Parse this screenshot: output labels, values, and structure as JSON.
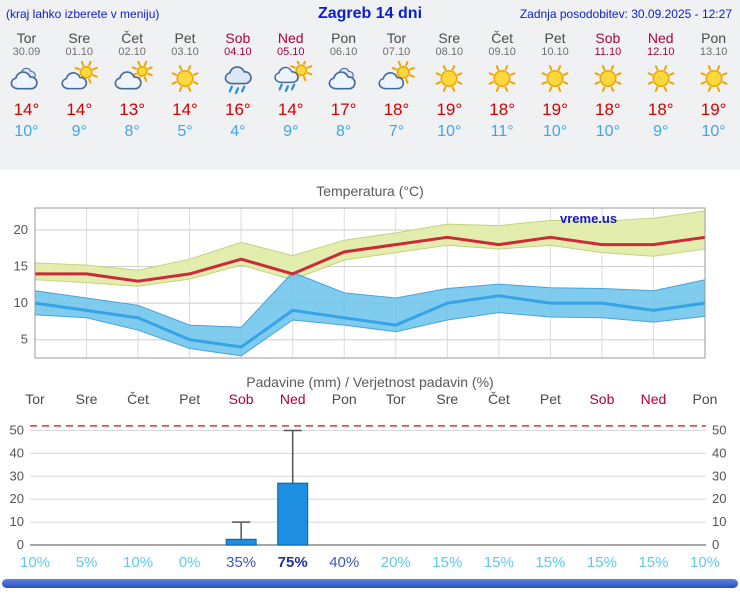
{
  "header": {
    "left_note": "(kraj lahko izberete v meniju)",
    "title": "Zagreb 14 dni",
    "updated": "Zadnja posodobitev: 30.09.2025 - 12:27"
  },
  "colors": {
    "header_blue": "#0a1ecc",
    "weekend_red": "#b00040",
    "day_gray": "#4a4a4a",
    "tmax_red": "#d40000",
    "tmin_blue": "#3fa5f0",
    "prob_low": "#5ecbe8",
    "prob_mid": "#3a57c0",
    "prob_high": "#202f9c",
    "footer_blue": "#2c4fb8",
    "footer_blue_light": "#5b82e8"
  },
  "days": [
    {
      "name": "Tor",
      "date": "30.09",
      "weekend": false,
      "icon": "cloudy",
      "tmax": "14°",
      "tmin": "10°"
    },
    {
      "name": "Sre",
      "date": "01.10",
      "weekend": false,
      "icon": "sun-cloud",
      "tmax": "14°",
      "tmin": "9°"
    },
    {
      "name": "Čet",
      "date": "02.10",
      "weekend": false,
      "icon": "cloud-sun",
      "tmax": "13°",
      "tmin": "8°"
    },
    {
      "name": "Pet",
      "date": "03.10",
      "weekend": false,
      "icon": "sunny",
      "tmax": "14°",
      "tmin": "5°"
    },
    {
      "name": "Sob",
      "date": "04.10",
      "weekend": true,
      "icon": "rain",
      "tmax": "16°",
      "tmin": "4°"
    },
    {
      "name": "Ned",
      "date": "05.10",
      "weekend": true,
      "icon": "sun-rain",
      "tmax": "14°",
      "tmin": "9°"
    },
    {
      "name": "Pon",
      "date": "06.10",
      "weekend": false,
      "icon": "cloudy",
      "tmax": "17°",
      "tmin": "8°"
    },
    {
      "name": "Tor",
      "date": "07.10",
      "weekend": false,
      "icon": "sun-cloud",
      "tmax": "18°",
      "tmin": "7°"
    },
    {
      "name": "Sre",
      "date": "08.10",
      "weekend": false,
      "icon": "sunny",
      "tmax": "19°",
      "tmin": "10°"
    },
    {
      "name": "Čet",
      "date": "09.10",
      "weekend": false,
      "icon": "sunny",
      "tmax": "18°",
      "tmin": "11°"
    },
    {
      "name": "Pet",
      "date": "10.10",
      "weekend": false,
      "icon": "sunny",
      "tmax": "19°",
      "tmin": "10°"
    },
    {
      "name": "Sob",
      "date": "11.10",
      "weekend": true,
      "icon": "sunny",
      "tmax": "18°",
      "tmin": "10°"
    },
    {
      "name": "Ned",
      "date": "12.10",
      "weekend": true,
      "icon": "sunny",
      "tmax": "18°",
      "tmin": "9°"
    },
    {
      "name": "Pon",
      "date": "13.10",
      "weekend": false,
      "icon": "sunny",
      "tmax": "19°",
      "tmin": "10°"
    }
  ],
  "chart_data": [
    {
      "type": "line",
      "title": "Temperatura (°C)",
      "x": [
        "Tor",
        "Sre",
        "Čet",
        "Pet",
        "Sob",
        "Ned",
        "Pon",
        "Tor",
        "Sre",
        "Čet",
        "Pet",
        "Sob",
        "Ned",
        "Pon"
      ],
      "series": [
        {
          "name": "max",
          "values": [
            14,
            14,
            13,
            14,
            16,
            14,
            17,
            18,
            19,
            18,
            19,
            18,
            18,
            19
          ],
          "color": "#cc2a38"
        },
        {
          "name": "min",
          "values": [
            10,
            9,
            8,
            5,
            4,
            9,
            8,
            7,
            10,
            11,
            10,
            10,
            9,
            10
          ],
          "color": "#36a3e8"
        }
      ],
      "bands": [
        {
          "name": "max-range",
          "upper": [
            15.5,
            15.2,
            14.5,
            16,
            18.3,
            16.5,
            18.6,
            19.6,
            20.8,
            20.6,
            21.3,
            21.2,
            21.6,
            22.6
          ],
          "lower": [
            13.2,
            12.8,
            12.3,
            13.3,
            15.2,
            13.2,
            15.9,
            16.9,
            17.9,
            17.4,
            17.9,
            16.9,
            16.4,
            17.4
          ],
          "fill": "#e3edad",
          "edge": "#c3d37e"
        },
        {
          "name": "min-range",
          "upper": [
            11.7,
            10.7,
            9.7,
            7,
            6.7,
            14.2,
            11.4,
            10.7,
            12,
            12.6,
            12.1,
            12,
            11.7,
            13.2
          ],
          "lower": [
            8.4,
            8,
            6.3,
            3.8,
            2.8,
            7.7,
            7,
            6.1,
            7.7,
            8.7,
            8.1,
            8,
            7.4,
            8.2
          ],
          "fill": "rgba(105,195,235,0.85)",
          "edge": "#49a3dc"
        }
      ],
      "ylim": [
        2.5,
        23
      ],
      "yticks": [
        5,
        10,
        15,
        20
      ],
      "grid": true,
      "watermark": "vreme.us"
    },
    {
      "type": "bar",
      "title": "Padavine (mm) / Verjetnost padavin (%)",
      "categories": [
        "Tor",
        "Sre",
        "Čet",
        "Pet",
        "Sob",
        "Ned",
        "Pon",
        "Tor",
        "Sre",
        "Čet",
        "Pet",
        "Sob",
        "Ned",
        "Pon"
      ],
      "weekend": [
        false,
        false,
        false,
        false,
        true,
        true,
        false,
        false,
        false,
        false,
        false,
        true,
        true,
        false
      ],
      "values": [
        0,
        0,
        0,
        0,
        2.5,
        27,
        0,
        0,
        0,
        0,
        0,
        0,
        0,
        0
      ],
      "whisker_max": [
        0,
        0,
        0,
        0,
        10,
        50,
        0,
        0,
        0,
        0,
        0,
        0,
        0,
        0
      ],
      "probabilities": [
        "10%",
        "5%",
        "10%",
        "0%",
        "35%",
        "75%",
        "40%",
        "20%",
        "15%",
        "15%",
        "15%",
        "15%",
        "15%",
        "10%"
      ],
      "prob_level": [
        "low",
        "low",
        "low",
        "low",
        "mid",
        "high",
        "mid",
        "low",
        "low",
        "low",
        "low",
        "low",
        "low",
        "low"
      ],
      "bar_color": "#1e8fe0",
      "bar_edge": "#0d62a8",
      "ylim": [
        0,
        55
      ],
      "yticks": [
        0,
        10,
        20,
        30,
        40,
        50
      ],
      "red_line": 52
    }
  ]
}
